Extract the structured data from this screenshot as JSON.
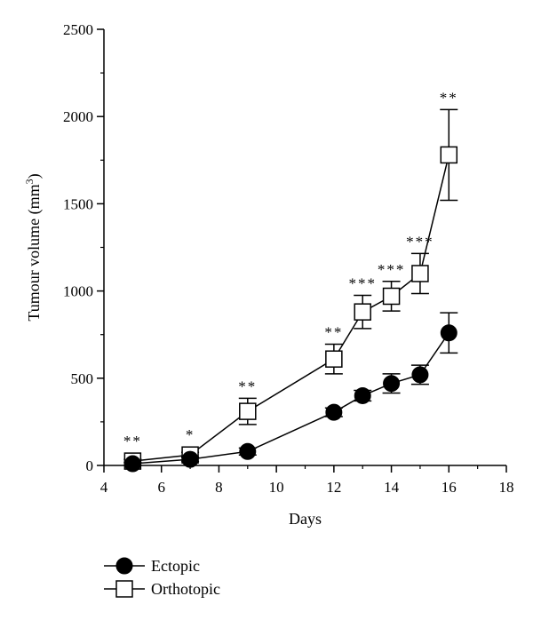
{
  "chart_data": {
    "type": "line",
    "title": "",
    "xlabel": "Days",
    "ylabel": {
      "text": "Tumour volume (mm",
      "sup": "3",
      "close": ")"
    },
    "xlim": [
      4,
      18
    ],
    "ylim": [
      0,
      2500
    ],
    "xticks": [
      "4",
      "6",
      "8",
      "10",
      "12",
      "14",
      "16",
      "18"
    ],
    "yticks": [
      "0",
      "500",
      "1000",
      "1500",
      "2000",
      "2500"
    ],
    "grid": false,
    "legend_position": "bottom-left",
    "series": [
      {
        "name": "Ectopic",
        "marker": "filled-circle",
        "color": "#000000",
        "x": [
          5,
          7,
          9,
          12,
          13,
          14,
          15,
          16
        ],
        "y": [
          10,
          35,
          80,
          305,
          400,
          470,
          520,
          760
        ],
        "err": [
          8,
          12,
          20,
          25,
          30,
          55,
          55,
          115
        ]
      },
      {
        "name": "Orthotopic",
        "marker": "open-square",
        "color": "#000000",
        "x": [
          5,
          7,
          9,
          12,
          13,
          14,
          15,
          16
        ],
        "y": [
          25,
          60,
          310,
          610,
          880,
          970,
          1100,
          1780
        ],
        "err": [
          10,
          15,
          75,
          85,
          95,
          85,
          115,
          260
        ],
        "significance": [
          "**",
          "*",
          "**",
          "**",
          "***",
          "***",
          "***",
          "**"
        ]
      }
    ]
  }
}
